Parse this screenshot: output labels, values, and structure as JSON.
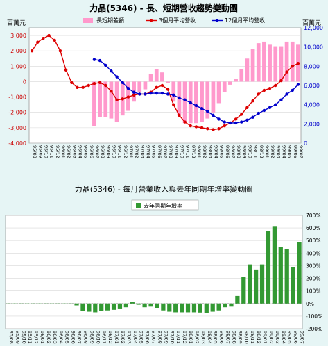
{
  "chart_data": [
    {
      "type": "bar+line",
      "title": "力晶(5346) -  長、短期營收趨勢變動圖",
      "left_unit": "百萬元",
      "right_unit": "百萬元",
      "left_ticks": [
        "3,000",
        "2,000",
        "1,000",
        "0",
        "-1,000",
        "-2,000",
        "-3,000",
        "-4,000"
      ],
      "right_ticks": [
        "12,000",
        "10,000",
        "8,000",
        "6,000",
        "4,000",
        "2,000",
        "0"
      ],
      "ylim_left": [
        -4000,
        3500
      ],
      "ylim_right": [
        0,
        12000
      ],
      "legend": [
        {
          "name": "長短期差額",
          "color": "#ff99cc",
          "kind": "bar"
        },
        {
          "name": "3個月平均營收",
          "color": "#dd0000",
          "kind": "line"
        },
        {
          "name": "12個月平均營收",
          "color": "#0000cc",
          "kind": "line"
        }
      ],
      "x": [
        "95/08",
        "95/09",
        "95/10",
        "95/11",
        "95/12",
        "96/01",
        "96/02",
        "96/03",
        "96/04",
        "96/05",
        "96/06",
        "96/07",
        "96/08",
        "96/09",
        "96/10",
        "96/11",
        "96/12",
        "97/01",
        "97/02",
        "97/03",
        "97/04",
        "97/05",
        "97/06",
        "97/07",
        "97/08",
        "97/09",
        "97/10",
        "97/11",
        "97/12",
        "98/01",
        "98/02",
        "98/03",
        "98/04",
        "98/05",
        "98/06",
        "98/07",
        "98/08",
        "98/09",
        "98/10",
        "98/11",
        "98/12",
        "99/01",
        "99/02",
        "99/03",
        "99/04",
        "99/05",
        "99/06",
        "99/07"
      ],
      "series": [
        {
          "name": "長短期差額",
          "axis": "left",
          "values": [
            null,
            null,
            null,
            null,
            null,
            null,
            null,
            null,
            null,
            null,
            null,
            -2900,
            -2300,
            -2300,
            -2400,
            -2600,
            -2200,
            -1900,
            -1300,
            -700,
            -500,
            500,
            800,
            600,
            -100,
            -1300,
            -2200,
            -2700,
            -2700,
            -2700,
            -2600,
            -2400,
            -2000,
            -1400,
            -700,
            -200,
            200,
            800,
            1500,
            2100,
            2500,
            2600,
            2400,
            2300,
            2300,
            2600,
            2600,
            2400
          ]
        },
        {
          "name": "3個月平均營收",
          "axis": "right",
          "values": [
            9600,
            10500,
            10900,
            11200,
            10700,
            9600,
            7600,
            6300,
            5800,
            5800,
            6000,
            6200,
            6300,
            6000,
            5400,
            4500,
            4600,
            4800,
            5000,
            5100,
            5100,
            5300,
            5800,
            6000,
            5600,
            4000,
            2900,
            2200,
            1800,
            1700,
            1600,
            1500,
            1400,
            1500,
            1800,
            2100,
            2500,
            3000,
            3700,
            4400,
            5100,
            5500,
            5700,
            6000,
            6500,
            7400,
            8000,
            8300
          ]
        },
        {
          "name": "12個月平均營收",
          "axis": "right",
          "values": [
            null,
            null,
            null,
            null,
            null,
            null,
            null,
            null,
            null,
            null,
            null,
            8700,
            8600,
            8100,
            7500,
            6900,
            6300,
            5700,
            5300,
            5100,
            5100,
            5200,
            5200,
            5200,
            5100,
            5000,
            4700,
            4500,
            4200,
            3900,
            3600,
            3300,
            2900,
            2500,
            2200,
            2100,
            2100,
            2200,
            2400,
            2700,
            3100,
            3400,
            3700,
            4000,
            4500,
            5100,
            5500,
            6100
          ]
        }
      ]
    },
    {
      "type": "bar",
      "title": "力晶(5346) -  每月營業收入與去年同期年增率變動圖",
      "legend": [
        {
          "name": "去年同期年增率",
          "color": "#339933"
        }
      ],
      "right_ticks": [
        "700%",
        "600%",
        "500%",
        "400%",
        "300%",
        "200%",
        "100%",
        "0%",
        "-100%",
        "-200%"
      ],
      "ylim": [
        -200,
        700
      ],
      "x": [
        "95/08",
        "95/09",
        "95/10",
        "95/11",
        "95/12",
        "96/01",
        "96/02",
        "96/03",
        "96/04",
        "96/05",
        "96/06",
        "96/07",
        "96/08",
        "96/09",
        "96/10",
        "96/11",
        "96/12",
        "97/01",
        "97/02",
        "97/03",
        "97/04",
        "97/05",
        "97/06",
        "97/07",
        "97/08",
        "97/09",
        "97/10",
        "97/11",
        "97/12",
        "98/01",
        "98/02",
        "98/03",
        "98/04",
        "98/05",
        "98/06",
        "98/07",
        "98/08",
        "98/09",
        "98/10",
        "98/11",
        "98/12",
        "99/01",
        "99/02",
        "99/03",
        "99/04",
        "99/05",
        "99/06",
        "99/07"
      ],
      "values": [
        -2,
        -2,
        -2,
        -2,
        -2,
        -2,
        -2,
        -2,
        -2,
        -2,
        -2,
        -15,
        -60,
        -65,
        -70,
        -60,
        -55,
        -50,
        -45,
        -30,
        10,
        -10,
        -30,
        -25,
        -35,
        -55,
        -65,
        -70,
        -70,
        -70,
        -70,
        -72,
        -75,
        -65,
        -55,
        -30,
        -25,
        60,
        210,
        310,
        270,
        310,
        575,
        610,
        450,
        430,
        290,
        490
      ]
    }
  ]
}
